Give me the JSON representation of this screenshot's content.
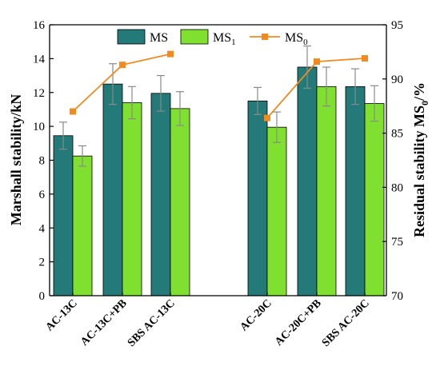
{
  "chart_data": {
    "type": "bar",
    "categories": [
      "AC-13C",
      "AC-13C+PB",
      "SBS AC-13C",
      "AC-20C",
      "AC-20C+PB",
      "SBS AC-20C"
    ],
    "series": [
      {
        "name": "MS",
        "axis": "left",
        "color": "#237a78",
        "values": [
          9.45,
          12.5,
          11.95,
          11.5,
          13.5,
          12.35
        ],
        "errors": [
          0.8,
          1.2,
          1.05,
          0.8,
          1.25,
          1.05
        ]
      },
      {
        "name": "MS",
        "name_sub": "1",
        "axis": "left",
        "color": "#80e030",
        "values": [
          8.25,
          11.4,
          11.05,
          9.95,
          12.35,
          11.35
        ],
        "errors": [
          0.6,
          0.95,
          1.0,
          0.9,
          1.15,
          1.05
        ]
      },
      {
        "name": "MS",
        "name_sub": "0",
        "type": "line",
        "axis": "right",
        "color": "#f28a1e",
        "groups": [
          [
            0,
            1,
            2
          ],
          [
            3,
            4,
            5
          ]
        ],
        "values": [
          87.0,
          91.3,
          92.3,
          86.4,
          91.6,
          91.9
        ]
      }
    ],
    "ylabel": "Marshall stability/kN",
    "ylim": [
      0,
      16
    ],
    "yticks": [
      0,
      2,
      4,
      6,
      8,
      10,
      12,
      14,
      16
    ],
    "y2label": "Residual stability MS",
    "y2label_sub": "0",
    "y2label_suffix": "/%",
    "y2lim": [
      70,
      95
    ],
    "y2ticks": [
      70,
      75,
      80,
      85,
      90,
      95
    ],
    "legend": "top-center",
    "grid": false
  }
}
